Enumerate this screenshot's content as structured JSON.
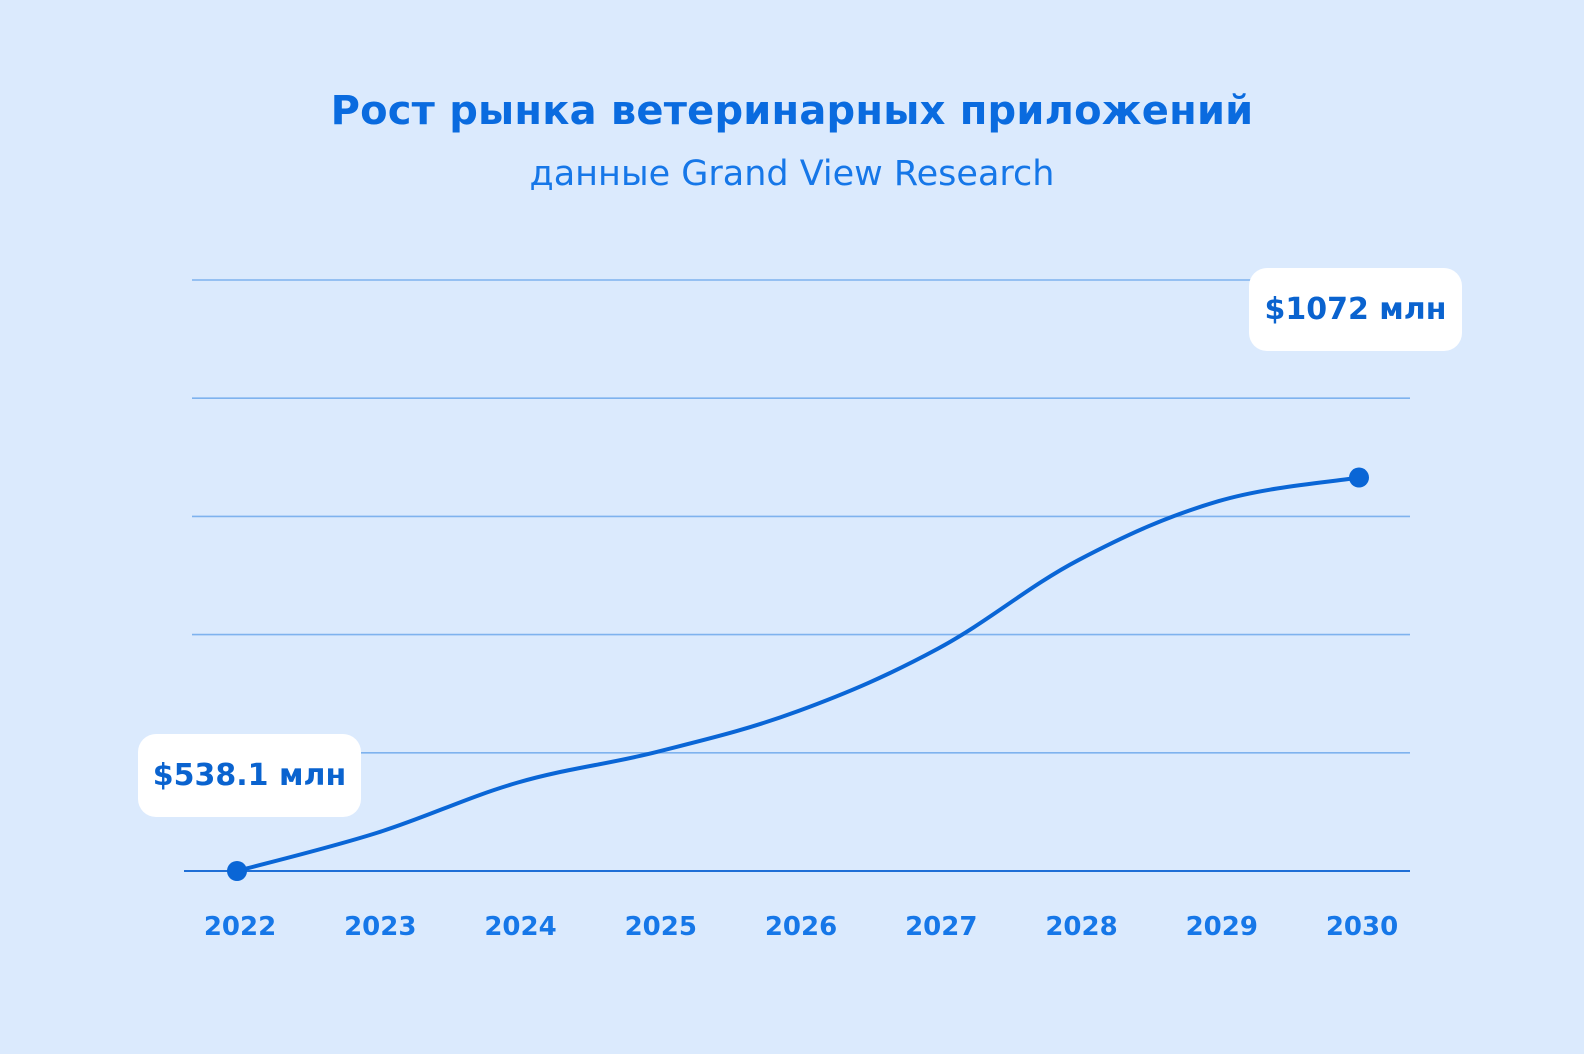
{
  "title": "Рост рынка ветеринарных приложений",
  "subtitle": "данные Grand View Research",
  "colors": {
    "background": "#dbeafd",
    "accent": "#0a6bdf",
    "line": "#0a66d6",
    "grid": "#7eb2ee",
    "callout_bg": "#ffffff"
  },
  "chart_data": {
    "type": "line",
    "title": "Рост рынка ветеринарных приложений",
    "subtitle": "данные Grand View Research",
    "xlabel": "",
    "ylabel": "",
    "categories": [
      "2022",
      "2023",
      "2024",
      "2025",
      "2026",
      "2027",
      "2028",
      "2029",
      "2030"
    ],
    "series": [
      {
        "values": [
          538.1,
          590,
          658,
          700,
          755,
          840,
          960,
          1040,
          1072
        ]
      }
    ],
    "unit": "млн",
    "ylim": [
      538.1,
      1340
    ],
    "grid": true,
    "annotations": [
      {
        "label": "$538.1 млн",
        "category": "2022",
        "value": 538.1
      },
      {
        "label": "$1072 млн",
        "category": "2030",
        "value": 1072
      }
    ]
  }
}
